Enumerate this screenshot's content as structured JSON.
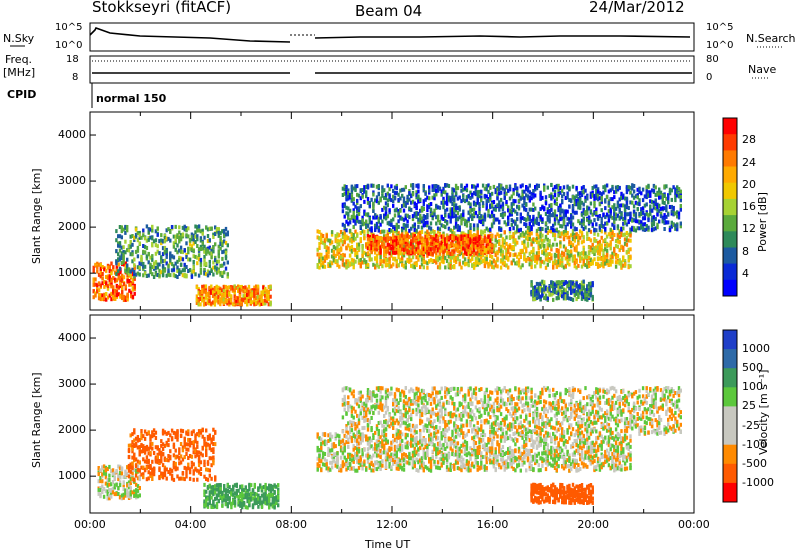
{
  "header": {
    "station": "Stokkseyri (fitACF)",
    "beam": "Beam 04",
    "date": "24/Mar/2012"
  },
  "top_panels": {
    "nsky_label": "N.Sky",
    "nsky_ticks": [
      "10^5",
      "10^0"
    ],
    "nsearch_label": "N.Search",
    "nsearch_ticks": [
      "10^5",
      "10^0"
    ],
    "freq_label_1": "Freq.",
    "freq_label_2": "[MHz]",
    "freq_ticks": [
      "18",
      "8"
    ],
    "nave_label": "Nave",
    "nave_ticks": [
      "80",
      "0"
    ],
    "cpid_label": "CPID",
    "cpid_value": "normal 150"
  },
  "chart_data": [
    {
      "type": "heatmap",
      "name": "power",
      "ylabel": "Slant Range [km]",
      "ylim": [
        200,
        4500
      ],
      "y_ticks": [
        "4000",
        "3000",
        "2000",
        "1000"
      ],
      "xlim": [
        "00:00",
        "24:00"
      ],
      "colorbar_label": "Power [dB]",
      "colorbar_ticks": [
        "28",
        "24",
        "20",
        "16",
        "12",
        "8",
        "4"
      ],
      "colorbar_colors": [
        "#ff0000",
        "#ff3b00",
        "#ff7a00",
        "#ffaa00",
        "#f0c800",
        "#a6d233",
        "#5aaa3c",
        "#2e8a5a",
        "#1c5aa0",
        "#0a2ad6",
        "#0000ff"
      ],
      "bands": [
        {
          "t0": 0.1,
          "t1": 1.8,
          "r0": 400,
          "r1": 1200,
          "level": 0.85
        },
        {
          "t0": 4.2,
          "t1": 7.2,
          "r0": 300,
          "r1": 700,
          "level": 0.75
        },
        {
          "t0": 1.0,
          "t1": 5.5,
          "r0": 900,
          "r1": 2000,
          "level": 0.35
        },
        {
          "t0": 9.0,
          "t1": 21.5,
          "r0": 1100,
          "r1": 1900,
          "level": 0.6
        },
        {
          "t0": 11.0,
          "t1": 16.0,
          "r0": 1400,
          "r1": 1800,
          "level": 0.85
        },
        {
          "t0": 10.0,
          "t1": 23.5,
          "r0": 1900,
          "r1": 2900,
          "level": 0.2
        },
        {
          "t0": 17.5,
          "t1": 20.0,
          "r0": 400,
          "r1": 800,
          "level": 0.3
        }
      ]
    },
    {
      "type": "heatmap",
      "name": "velocity",
      "ylabel": "Slant Range [km]",
      "ylim": [
        200,
        4500
      ],
      "y_ticks": [
        "4000",
        "3000",
        "2000",
        "1000"
      ],
      "xlim": [
        "00:00",
        "24:00"
      ],
      "x_ticks": [
        "00:00",
        "04:00",
        "08:00",
        "12:00",
        "16:00",
        "20:00",
        "00:00"
      ],
      "xlabel": "Time UT",
      "colorbar_label": "Velocity [m s⁻¹]",
      "colorbar_ticks": [
        "1000",
        "500",
        "100",
        "25",
        "-25",
        "-100",
        "-500",
        "-1000"
      ],
      "colorbar_colors": [
        "#1f3fc8",
        "#2e6aa8",
        "#3c9a5a",
        "#5cc83c",
        "#c8c8c0",
        "#c8c8c0",
        "#ff8a00",
        "#ff5a00",
        "#ff0000"
      ],
      "bands": [
        {
          "t0": 9.0,
          "t1": 21.5,
          "r0": 1100,
          "r1": 1900,
          "v": 0
        },
        {
          "t0": 0.3,
          "t1": 2.0,
          "r0": 500,
          "r1": 1200,
          "v": 0
        },
        {
          "t0": 4.5,
          "t1": 7.5,
          "r0": 300,
          "r1": 800,
          "v": 200
        },
        {
          "t0": 1.5,
          "t1": 5.0,
          "r0": 900,
          "r1": 2000,
          "v": -300
        },
        {
          "t0": 17.5,
          "t1": 20.0,
          "r0": 400,
          "r1": 800,
          "v": -400
        },
        {
          "t0": 10.0,
          "t1": 23.5,
          "r0": 1900,
          "r1": 2900,
          "v": 0
        }
      ]
    }
  ]
}
